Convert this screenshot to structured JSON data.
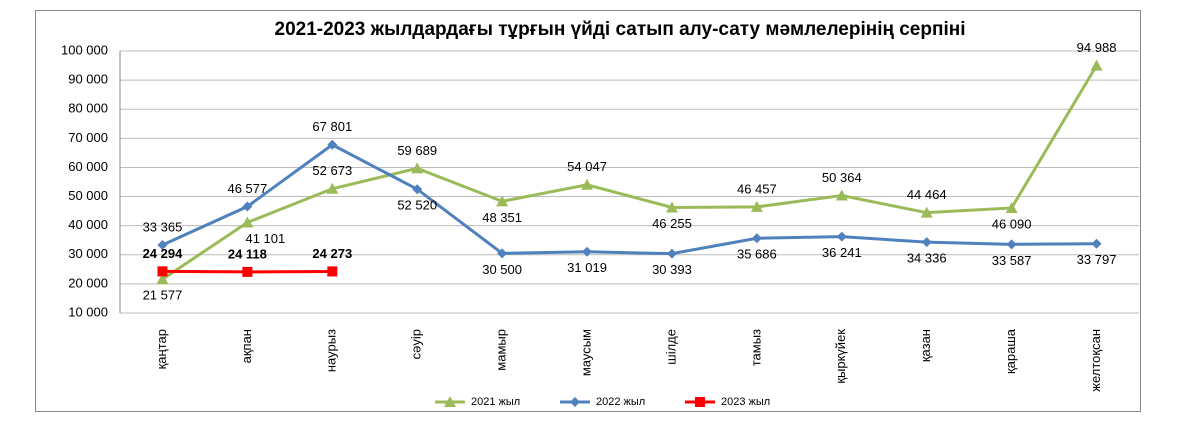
{
  "chart_data": {
    "type": "line",
    "title": "2021-2023 жылдардағы тұрғын үйді сатып алу-сату мәмлелерінің серпіні",
    "categories": [
      "қаңтар",
      "ақпан",
      "наурыз",
      "сәуір",
      "мамыр",
      "маусым",
      "шілде",
      "тамыз",
      "қыркүйек",
      "қазан",
      "қараша",
      "желтоқсан"
    ],
    "series": [
      {
        "name": "2021 жыл",
        "color": "#9bbb59",
        "marker": "triangle",
        "values": [
          21577,
          41101,
          52673,
          59689,
          48351,
          54047,
          46255,
          46457,
          50364,
          44464,
          46090,
          94988
        ],
        "value_labels": [
          "21 577",
          "41 101",
          "52 673",
          "59 689",
          "48 351",
          "54 047",
          "46 255",
          "46 457",
          "50 364",
          "44 464",
          "46 090",
          "94 988"
        ]
      },
      {
        "name": "2022 жыл",
        "color": "#4f81bd",
        "marker": "diamond",
        "values": [
          33365,
          46577,
          67801,
          52520,
          30500,
          31019,
          30393,
          35686,
          36241,
          34336,
          33587,
          33797
        ],
        "value_labels": [
          "33 365",
          "46 577",
          "67 801",
          "52 520",
          "30 500",
          "31 019",
          "30 393",
          "35 686",
          "36 241",
          "34 336",
          "33 587",
          "33 797"
        ]
      },
      {
        "name": "2023 жыл",
        "color": "#ff0000",
        "marker": "square",
        "values": [
          24294,
          24118,
          24273,
          null,
          null,
          null,
          null,
          null,
          null,
          null,
          null,
          null
        ],
        "value_labels": [
          "24 294",
          "24 118",
          "24 273",
          null,
          null,
          null,
          null,
          null,
          null,
          null,
          null,
          null
        ]
      }
    ],
    "ylim": [
      10000,
      100000
    ],
    "yticks": [
      {
        "value": 10000,
        "label": "10 000"
      },
      {
        "value": 20000,
        "label": "20 000"
      },
      {
        "value": 30000,
        "label": "30 000"
      },
      {
        "value": 40000,
        "label": "40 000"
      },
      {
        "value": 50000,
        "label": "50 000"
      },
      {
        "value": 60000,
        "label": "60 000"
      },
      {
        "value": 70000,
        "label": "70 000"
      },
      {
        "value": 80000,
        "label": "80 000"
      },
      {
        "value": 90000,
        "label": "90 000"
      },
      {
        "value": 100000,
        "label": "100 000"
      }
    ],
    "grid": true,
    "legend": "bottom"
  }
}
